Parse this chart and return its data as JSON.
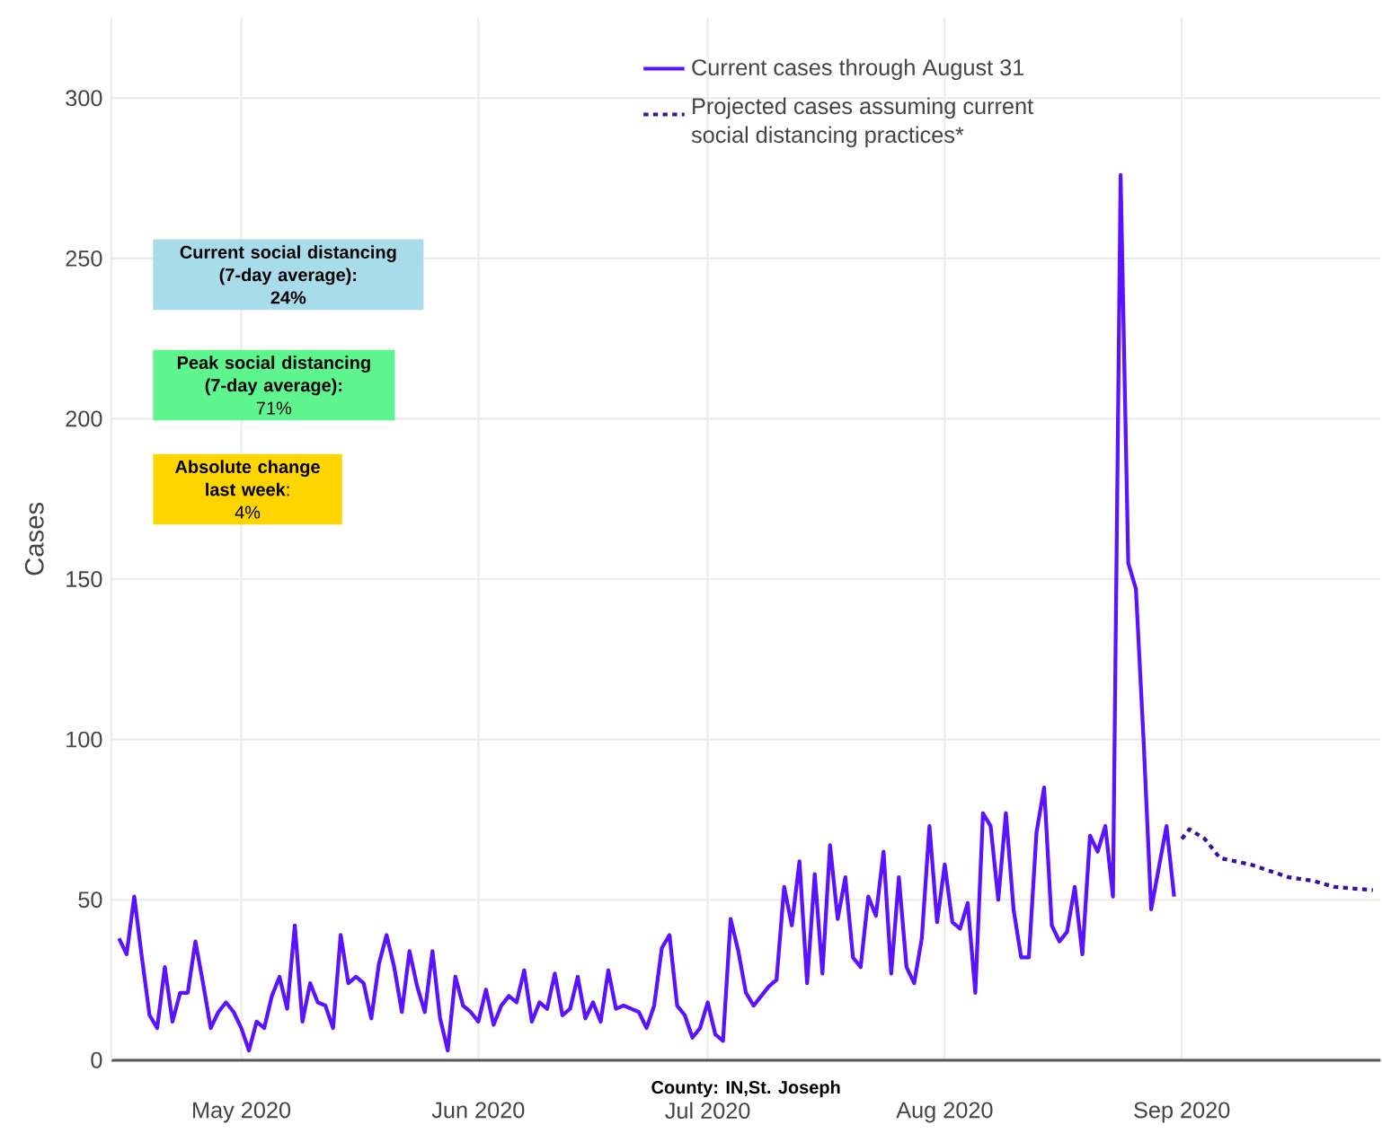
{
  "chart_data": {
    "type": "line",
    "ylabel": "Cases",
    "xlim": [
      "2020-04-14",
      "2020-09-27"
    ],
    "xticks": [
      {
        "value": "2020-05-01",
        "label": "May 2020"
      },
      {
        "value": "2020-06-01",
        "label": "Jun 2020"
      },
      {
        "value": "2020-07-01",
        "label": "Jul 2020"
      },
      {
        "value": "2020-08-01",
        "label": "Aug 2020"
      },
      {
        "value": "2020-09-01",
        "label": "Sep 2020"
      }
    ],
    "ylim": [
      0,
      325
    ],
    "yticks": [
      0,
      50,
      100,
      150,
      200,
      250,
      300
    ],
    "grid": true,
    "legend": "top right",
    "marker": "none",
    "annotations": [
      "**Current social distancing (7-day average):**",
      "**24%**",
      "**Peak social distancing (7-day average):**",
      "71%",
      "**Absolute change last week**:",
      "4%",
      "**County: IN,St. Joseph**"
    ],
    "series": [
      {
        "name": "Current cases through August 31",
        "color": "#5b12ff",
        "line_style": "solid",
        "x": [
          "2020-04-15",
          "2020-04-16",
          "2020-04-17",
          "2020-04-18",
          "2020-04-19",
          "2020-04-20",
          "2020-04-21",
          "2020-04-22",
          "2020-04-23",
          "2020-04-24",
          "2020-04-25",
          "2020-04-26",
          "2020-04-27",
          "2020-04-28",
          "2020-04-29",
          "2020-04-30",
          "2020-05-01",
          "2020-05-02",
          "2020-05-03",
          "2020-05-04",
          "2020-05-05",
          "2020-05-06",
          "2020-05-07",
          "2020-05-08",
          "2020-05-09",
          "2020-05-10",
          "2020-05-11",
          "2020-05-12",
          "2020-05-13",
          "2020-05-14",
          "2020-05-15",
          "2020-05-16",
          "2020-05-17",
          "2020-05-18",
          "2020-05-19",
          "2020-05-20",
          "2020-05-21",
          "2020-05-22",
          "2020-05-23",
          "2020-05-24",
          "2020-05-25",
          "2020-05-26",
          "2020-05-27",
          "2020-05-28",
          "2020-05-29",
          "2020-05-30",
          "2020-05-31",
          "2020-06-01",
          "2020-06-02",
          "2020-06-03",
          "2020-06-04",
          "2020-06-05",
          "2020-06-06",
          "2020-06-07",
          "2020-06-08",
          "2020-06-09",
          "2020-06-10",
          "2020-06-11",
          "2020-06-12",
          "2020-06-13",
          "2020-06-14",
          "2020-06-15",
          "2020-06-16",
          "2020-06-17",
          "2020-06-18",
          "2020-06-19",
          "2020-06-20",
          "2020-06-21",
          "2020-06-22",
          "2020-06-23",
          "2020-06-24",
          "2020-06-25",
          "2020-06-26",
          "2020-06-27",
          "2020-06-28",
          "2020-06-29",
          "2020-06-30",
          "2020-07-01",
          "2020-07-02",
          "2020-07-03",
          "2020-07-04",
          "2020-07-05",
          "2020-07-06",
          "2020-07-07",
          "2020-07-08",
          "2020-07-09",
          "2020-07-10",
          "2020-07-11",
          "2020-07-12",
          "2020-07-13",
          "2020-07-14",
          "2020-07-15",
          "2020-07-16",
          "2020-07-17",
          "2020-07-18",
          "2020-07-19",
          "2020-07-20",
          "2020-07-21",
          "2020-07-22",
          "2020-07-23",
          "2020-07-24",
          "2020-07-25",
          "2020-07-26",
          "2020-07-27",
          "2020-07-28",
          "2020-07-29",
          "2020-07-30",
          "2020-07-31",
          "2020-08-01",
          "2020-08-02",
          "2020-08-03",
          "2020-08-04",
          "2020-08-05",
          "2020-08-06",
          "2020-08-07",
          "2020-08-08",
          "2020-08-09",
          "2020-08-10",
          "2020-08-11",
          "2020-08-12",
          "2020-08-13",
          "2020-08-14",
          "2020-08-15",
          "2020-08-16",
          "2020-08-17",
          "2020-08-18",
          "2020-08-19",
          "2020-08-20",
          "2020-08-21",
          "2020-08-22",
          "2020-08-23",
          "2020-08-24",
          "2020-08-25",
          "2020-08-26",
          "2020-08-27",
          "2020-08-28",
          "2020-08-29",
          "2020-08-30",
          "2020-08-31"
        ],
        "values": [
          38,
          33,
          51,
          32,
          14,
          10,
          29,
          12,
          21,
          21,
          37,
          24,
          10,
          15,
          18,
          15,
          10,
          3,
          12,
          10,
          20,
          26,
          16,
          42,
          12,
          24,
          18,
          17,
          10,
          39,
          24,
          26,
          24,
          13,
          30,
          39,
          29,
          15,
          34,
          23,
          15,
          34,
          13,
          3,
          26,
          17,
          15,
          12,
          22,
          11,
          17,
          20,
          18,
          28,
          12,
          18,
          16,
          27,
          14,
          16,
          26,
          13,
          18,
          12,
          28,
          16,
          17,
          16,
          15,
          10,
          17,
          35,
          39,
          17,
          14,
          7,
          10,
          18,
          8,
          6,
          44,
          34,
          21,
          17,
          20,
          23,
          25,
          54,
          42,
          62,
          24,
          58,
          27,
          67,
          44,
          57,
          32,
          29,
          51,
          45,
          65,
          27,
          57,
          29,
          24,
          38,
          73,
          43,
          61,
          43,
          41,
          49,
          21,
          77,
          73,
          50,
          77,
          47,
          32,
          32,
          71,
          85,
          42,
          37,
          40,
          54,
          33,
          70,
          65,
          73,
          51,
          276,
          155,
          147,
          100,
          47,
          60,
          73,
          51
        ]
      },
      {
        "name": "Projected cases assuming current social distancing practices*",
        "color": "#3b0f9e",
        "line_style": "dotted",
        "x": [
          "2020-09-01",
          "2020-09-02",
          "2020-09-04",
          "2020-09-06",
          "2020-09-10",
          "2020-09-15",
          "2020-09-18",
          "2020-09-21",
          "2020-09-26"
        ],
        "values": [
          69,
          72,
          69,
          63,
          61,
          57,
          56,
          54,
          53
        ]
      }
    ]
  }
}
